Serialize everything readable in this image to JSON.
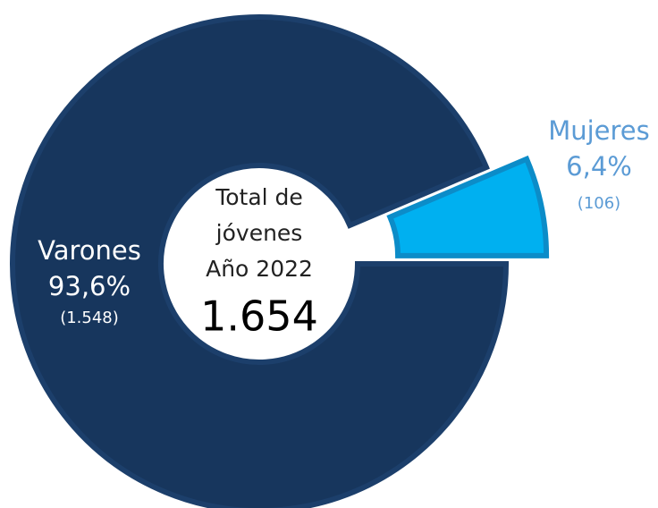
{
  "chart_data": {
    "type": "donut",
    "categories": [
      "Varones",
      "Mujeres"
    ],
    "values": [
      93.6,
      6.4
    ],
    "value_labels": [
      "93,6%",
      "6,4%"
    ],
    "counts": [
      1548,
      106
    ],
    "count_labels": [
      "(1.548)",
      "(106)"
    ],
    "colors": [
      "#17365d",
      "#00b0f0"
    ],
    "label_colors": [
      "#ffffff",
      "#5b9bd5"
    ],
    "explode": [
      false,
      true
    ],
    "center_text": [
      "Total de",
      "jóvenes",
      "Año 2022"
    ],
    "total": 1654,
    "total_label": "1.654"
  }
}
